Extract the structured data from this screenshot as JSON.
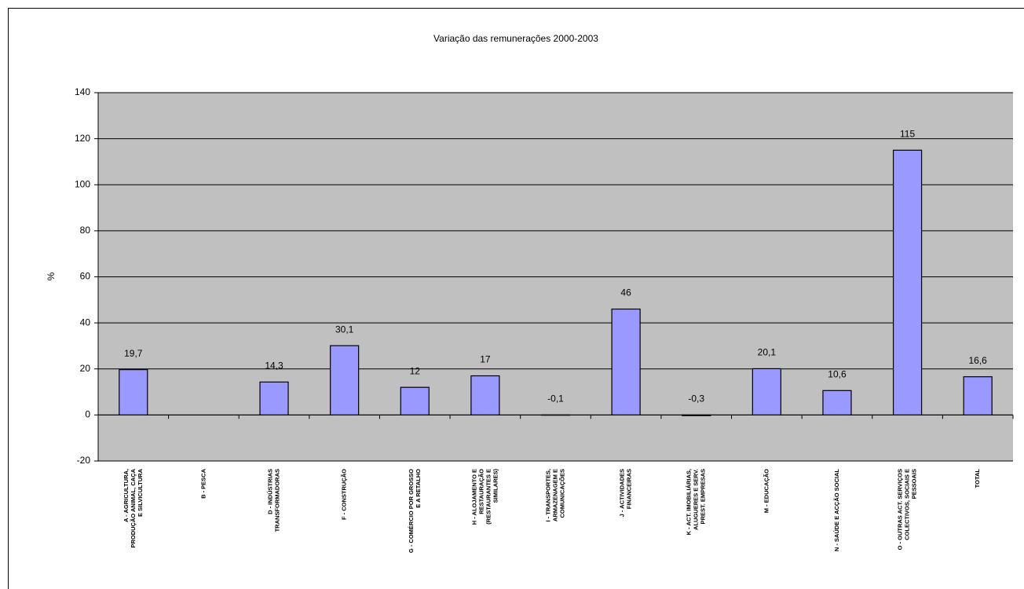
{
  "chart_data": {
    "type": "bar",
    "title": "Variação das remunerações 2000-2003",
    "y_label": "%",
    "categories": [
      "A - AGRICULTURA,\nPRODUÇÃO ANIMAL, CAÇA\nE SILVICULTURA",
      "B - PESCA",
      "D - INDÚSTRIAS\nTRANSFORMADORAS",
      "F - CONSTRUÇÃO",
      "G - COMÉRCIO POR GROSSO\nE A RETALHO",
      "H - ALOJAMENTO E\nRESTAURAÇÃO\n(RESTAURANTES E\nSIMILARES)",
      "I - TRANSPORTES,\nARMAZENAGEM E\nCOMUNICAÇÕES",
      "J - ACTIVIDADES\nFINANCEIRAS",
      "K - ACT. IMOBILIÁRIAS,\nALUGUERES E SERV.\nPREST. EMPRESAS",
      "M - EDUCAÇÃO",
      "N - SAÚDE E ACÇÃO SOCIAL",
      "O - OUTRAS ACT. SERVIÇOS\nCOLECTIVOS, SOCIAIS E\nPESSOAIS",
      "TOTAL"
    ],
    "values": [
      19.7,
      null,
      14.3,
      30.1,
      12,
      17,
      -0.1,
      46,
      -0.3,
      20.1,
      10.6,
      115,
      16.6
    ],
    "value_labels": [
      "19,7",
      null,
      "14,3",
      "30,1",
      "12",
      "17",
      "-0,1",
      "46",
      "-0,3",
      "20,1",
      "10,6",
      "115",
      "16,6"
    ],
    "color": "#9999ff",
    "ylim": [
      -20,
      140
    ],
    "yticks": [
      -20,
      0,
      20,
      40,
      60,
      80,
      100,
      120,
      140
    ],
    "grid": true
  }
}
